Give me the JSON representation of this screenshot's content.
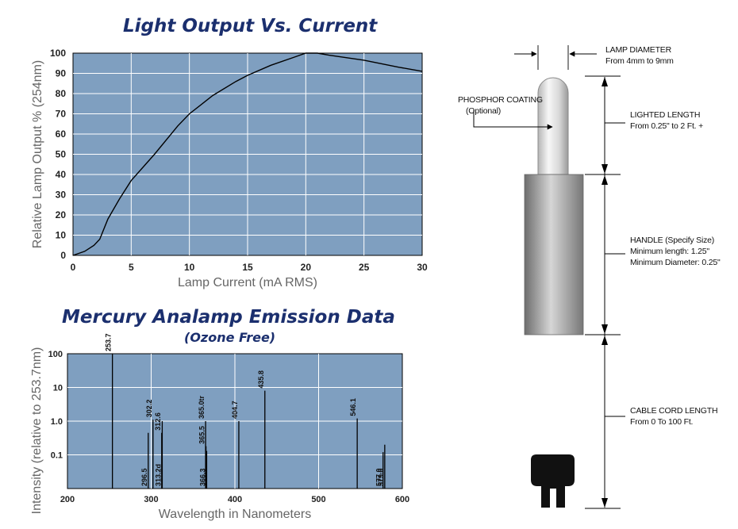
{
  "chart_data": [
    {
      "type": "line",
      "title": "Light Output Vs. Current",
      "xlabel": "Lamp Current (mA RMS)",
      "ylabel": "Relative Lamp Output % (254nm)",
      "xlim": [
        0,
        30
      ],
      "ylim": [
        0,
        100
      ],
      "xticks": [
        "0",
        "5",
        "10",
        "15",
        "20",
        "25",
        "30"
      ],
      "yticks": [
        "0",
        "10",
        "20",
        "30",
        "40",
        "50",
        "60",
        "70",
        "80",
        "90",
        "100"
      ],
      "grid": true,
      "series": [
        {
          "x": [
            0,
            1,
            1.8,
            2.3,
            3,
            4,
            5,
            7,
            9,
            10,
            12,
            14,
            15,
            17,
            19,
            20,
            21,
            22,
            25,
            28,
            30
          ],
          "y": [
            0,
            2,
            5,
            8,
            18,
            28,
            37,
            50,
            64,
            70,
            79,
            86,
            89,
            94,
            98,
            100,
            100,
            99,
            96.5,
            93,
            91
          ]
        }
      ]
    },
    {
      "type": "bar",
      "title": "Mercury Analamp Emission Data",
      "subtitle": "(Ozone Free)",
      "xlabel": "Wavelength in Nanometers",
      "ylabel": "Intensity (relative to 253.7nm)",
      "xlim": [
        200,
        600
      ],
      "ylim": [
        0.01,
        100
      ],
      "yscale": "log",
      "xticks": [
        "200",
        "300",
        "400",
        "500",
        "600"
      ],
      "yticks": [
        {
          "value": 100,
          "label": "100"
        },
        {
          "value": 10,
          "label": "10"
        },
        {
          "value": 1,
          "label": "1.0"
        },
        {
          "value": 0.1,
          "label": "0.1"
        }
      ],
      "grid": true,
      "lines": [
        {
          "x": 253.7,
          "value": 100,
          "label": "253.7",
          "label_pos": "top"
        },
        {
          "x": 296.5,
          "value": 0.45,
          "label": "296.5",
          "label_pos": "bottom"
        },
        {
          "x": 302.2,
          "value": 1.1,
          "label": "302.2",
          "label_pos": "top"
        },
        {
          "x": 312.6,
          "value": 0.45,
          "label": "312.6",
          "label_pos": "top"
        },
        {
          "x": 313.2,
          "value": 1.0,
          "label": "313.2d",
          "label_pos": "bottom"
        },
        {
          "x": 365.0,
          "value": 1.0,
          "label": "365.0tr",
          "label_pos": "top"
        },
        {
          "x": 365.5,
          "value": 0.18,
          "label": "365.5",
          "label_pos": "top"
        },
        {
          "x": 366.3,
          "value": 0.13,
          "label": "366.3",
          "label_pos": "bottom"
        },
        {
          "x": 404.7,
          "value": 1.0,
          "label": "404.7",
          "label_pos": "top"
        },
        {
          "x": 435.8,
          "value": 8.0,
          "label": "435.8",
          "label_pos": "top"
        },
        {
          "x": 546.1,
          "value": 1.2,
          "label": "546.1",
          "label_pos": "top"
        },
        {
          "x": 577.0,
          "value": 0.12,
          "label": "577.0",
          "label_pos": "bottom"
        },
        {
          "x": 579.0,
          "value": 0.2,
          "label": "579.0",
          "label_pos": "bottom"
        }
      ]
    }
  ],
  "diagram": {
    "lamp_diameter": [
      "LAMP DIAMETER",
      "From 4mm to 9mm"
    ],
    "phosphor_coating": [
      "PHOSPHOR COATING",
      "(Optional)"
    ],
    "lighted_length": [
      "LIGHTED LENGTH",
      "From 0.25\" to 2 Ft. +"
    ],
    "handle": [
      "HANDLE  (Specify Size)",
      "Minimum length: 1.25\"",
      "Minimum Diameter: 0.25\""
    ],
    "cable_cord_length": [
      "CABLE CORD LENGTH",
      "From 0 To 100 Ft."
    ]
  },
  "colors": {
    "plot_bg": "#7f9fc0",
    "title": "#1b2f6e",
    "grid": "#ffffff",
    "line": "#000000",
    "axis_text": "#666666"
  }
}
